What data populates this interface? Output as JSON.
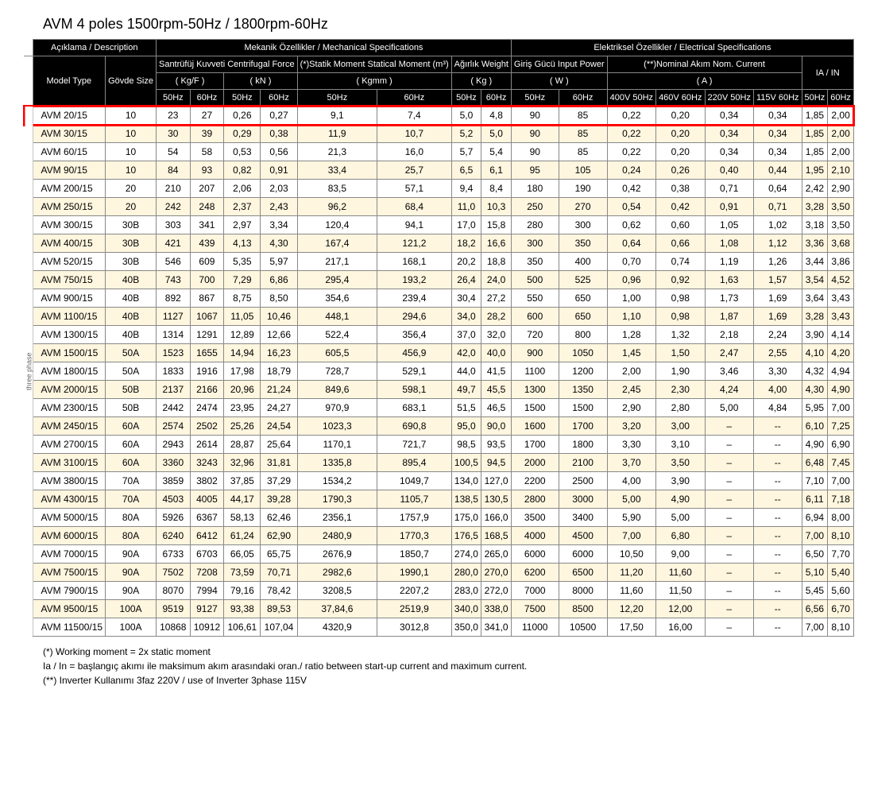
{
  "title": "AVM 4 poles 1500rpm-50Hz  / 1800rpm-60Hz",
  "sideLabel": "three phase",
  "headers": {
    "groupDesc": "Açıklama / Description",
    "groupMech": "Mekanik Özellikler / Mechanical Specifications",
    "groupElec": "Elektriksel Özellikler / Electrical Specifications",
    "modelType": "Model Type",
    "bodySize": "Gövde Size",
    "centrifugal": "Santrüfüj Kuvveti Centrifugal Force",
    "centrifugalKgf": "( Kg/F )",
    "centrifugalKn": "( kN )",
    "statical": "(*)Statik Moment Statical Moment (m³)",
    "staticalUnit": "( Kgmm )",
    "weight": "Ağırlık Weight",
    "weightUnit": "( Kg )",
    "inputPower": "Giriş Gücü Input Power",
    "inputPowerUnit": "( W )",
    "nomCurrent": "(**)Nominal Akım Nom. Current",
    "nomCurrentUnit": "( A )",
    "iain": "IA / IN",
    "h50": "50Hz",
    "h60": "60Hz",
    "v400_50": "400V 50Hz",
    "v460_60": "460V 60Hz",
    "v220_50": "220V 50Hz",
    "v115_60": "115V 60Hz"
  },
  "columns": [
    "model",
    "size",
    "cf50",
    "cf60",
    "kn50",
    "kn60",
    "sm50",
    "sm60",
    "w50",
    "w60",
    "ip50",
    "ip60",
    "nc400",
    "nc460",
    "nc220",
    "nc115",
    "ia50",
    "ia60"
  ],
  "highlightRow": 0,
  "rows": [
    [
      "AVM 20/15",
      "10",
      "23",
      "27",
      "0,26",
      "0,27",
      "9,1",
      "7,4",
      "5,0",
      "4,8",
      "90",
      "85",
      "0,22",
      "0,20",
      "0,34",
      "0,34",
      "1,85",
      "2,00"
    ],
    [
      "AVM 30/15",
      "10",
      "30",
      "39",
      "0,29",
      "0,38",
      "11,9",
      "10,7",
      "5,2",
      "5,0",
      "90",
      "85",
      "0,22",
      "0,20",
      "0,34",
      "0,34",
      "1,85",
      "2,00"
    ],
    [
      "AVM 60/15",
      "10",
      "54",
      "58",
      "0,53",
      "0,56",
      "21,3",
      "16,0",
      "5,7",
      "5,4",
      "90",
      "85",
      "0,22",
      "0,20",
      "0,34",
      "0,34",
      "1,85",
      "2,00"
    ],
    [
      "AVM 90/15",
      "10",
      "84",
      "93",
      "0,82",
      "0,91",
      "33,4",
      "25,7",
      "6,5",
      "6,1",
      "95",
      "105",
      "0,24",
      "0,26",
      "0,40",
      "0,44",
      "1,95",
      "2,10"
    ],
    [
      "AVM 200/15",
      "20",
      "210",
      "207",
      "2,06",
      "2,03",
      "83,5",
      "57,1",
      "9,4",
      "8,4",
      "180",
      "190",
      "0,42",
      "0,38",
      "0,71",
      "0,64",
      "2,42",
      "2,90"
    ],
    [
      "AVM 250/15",
      "20",
      "242",
      "248",
      "2,37",
      "2,43",
      "96,2",
      "68,4",
      "11,0",
      "10,3",
      "250",
      "270",
      "0,54",
      "0,42",
      "0,91",
      "0,71",
      "3,28",
      "3,50"
    ],
    [
      "AVM 300/15",
      "30B",
      "303",
      "341",
      "2,97",
      "3,34",
      "120,4",
      "94,1",
      "17,0",
      "15,8",
      "280",
      "300",
      "0,62",
      "0,60",
      "1,05",
      "1,02",
      "3,18",
      "3,50"
    ],
    [
      "AVM 400/15",
      "30B",
      "421",
      "439",
      "4,13",
      "4,30",
      "167,4",
      "121,2",
      "18,2",
      "16,6",
      "300",
      "350",
      "0,64",
      "0,66",
      "1,08",
      "1,12",
      "3,36",
      "3,68"
    ],
    [
      "AVM 520/15",
      "30B",
      "546",
      "609",
      "5,35",
      "5,97",
      "217,1",
      "168,1",
      "20,2",
      "18,8",
      "350",
      "400",
      "0,70",
      "0,74",
      "1,19",
      "1,26",
      "3,44",
      "3,86"
    ],
    [
      "AVM 750/15",
      "40B",
      "743",
      "700",
      "7,29",
      "6,86",
      "295,4",
      "193,2",
      "26,4",
      "24,0",
      "500",
      "525",
      "0,96",
      "0,92",
      "1,63",
      "1,57",
      "3,54",
      "4,52"
    ],
    [
      "AVM 900/15",
      "40B",
      "892",
      "867",
      "8,75",
      "8,50",
      "354,6",
      "239,4",
      "30,4",
      "27,2",
      "550",
      "650",
      "1,00",
      "0,98",
      "1,73",
      "1,69",
      "3,64",
      "3,43"
    ],
    [
      "AVM 1100/15",
      "40B",
      "1127",
      "1067",
      "11,05",
      "10,46",
      "448,1",
      "294,6",
      "34,0",
      "28,2",
      "600",
      "650",
      "1,10",
      "0,98",
      "1,87",
      "1,69",
      "3,28",
      "3,43"
    ],
    [
      "AVM 1300/15",
      "40B",
      "1314",
      "1291",
      "12,89",
      "12,66",
      "522,4",
      "356,4",
      "37,0",
      "32,0",
      "720",
      "800",
      "1,28",
      "1,32",
      "2,18",
      "2,24",
      "3,90",
      "4,14"
    ],
    [
      "AVM 1500/15",
      "50A",
      "1523",
      "1655",
      "14,94",
      "16,23",
      "605,5",
      "456,9",
      "42,0",
      "40,0",
      "900",
      "1050",
      "1,45",
      "1,50",
      "2,47",
      "2,55",
      "4,10",
      "4,20"
    ],
    [
      "AVM 1800/15",
      "50A",
      "1833",
      "1916",
      "17,98",
      "18,79",
      "728,7",
      "529,1",
      "44,0",
      "41,5",
      "1100",
      "1200",
      "2,00",
      "1,90",
      "3,46",
      "3,30",
      "4,32",
      "4,94"
    ],
    [
      "AVM 2000/15",
      "50B",
      "2137",
      "2166",
      "20,96",
      "21,24",
      "849,6",
      "598,1",
      "49,7",
      "45,5",
      "1300",
      "1350",
      "2,45",
      "2,30",
      "4,24",
      "4,00",
      "4,30",
      "4,90"
    ],
    [
      "AVM 2300/15",
      "50B",
      "2442",
      "2474",
      "23,95",
      "24,27",
      "970,9",
      "683,1",
      "51,5",
      "46,5",
      "1500",
      "1500",
      "2,90",
      "2,80",
      "5,00",
      "4,84",
      "5,95",
      "7,00"
    ],
    [
      "AVM 2450/15",
      "60A",
      "2574",
      "2502",
      "25,26",
      "24,54",
      "1023,3",
      "690,8",
      "95,0",
      "90,0",
      "1600",
      "1700",
      "3,20",
      "3,00",
      "–",
      "--",
      "6,10",
      "7,25"
    ],
    [
      "AVM 2700/15",
      "60A",
      "2943",
      "2614",
      "28,87",
      "25,64",
      "1170,1",
      "721,7",
      "98,5",
      "93,5",
      "1700",
      "1800",
      "3,30",
      "3,10",
      "–",
      "--",
      "4,90",
      "6,90"
    ],
    [
      "AVM 3100/15",
      "60A",
      "3360",
      "3243",
      "32,96",
      "31,81",
      "1335,8",
      "895,4",
      "100,5",
      "94,5",
      "2000",
      "2100",
      "3,70",
      "3,50",
      "–",
      "--",
      "6,48",
      "7,45"
    ],
    [
      "AVM 3800/15",
      "70A",
      "3859",
      "3802",
      "37,85",
      "37,29",
      "1534,2",
      "1049,7",
      "134,0",
      "127,0",
      "2200",
      "2500",
      "4,00",
      "3,90",
      "–",
      "--",
      "7,10",
      "7,00"
    ],
    [
      "AVM 4300/15",
      "70A",
      "4503",
      "4005",
      "44,17",
      "39,28",
      "1790,3",
      "1105,7",
      "138,5",
      "130,5",
      "2800",
      "3000",
      "5,00",
      "4,90",
      "–",
      "--",
      "6,11",
      "7,18"
    ],
    [
      "AVM 5000/15",
      "80A",
      "5926",
      "6367",
      "58,13",
      "62,46",
      "2356,1",
      "1757,9",
      "175,0",
      "166,0",
      "3500",
      "3400",
      "5,90",
      "5,00",
      "–",
      "--",
      "6,94",
      "8,00"
    ],
    [
      "AVM 6000/15",
      "80A",
      "6240",
      "6412",
      "61,24",
      "62,90",
      "2480,9",
      "1770,3",
      "176,5",
      "168,5",
      "4000",
      "4500",
      "7,00",
      "6,80",
      "–",
      "--",
      "7,00",
      "8,10"
    ],
    [
      "AVM 7000/15",
      "90A",
      "6733",
      "6703",
      "66,05",
      "65,75",
      "2676,9",
      "1850,7",
      "274,0",
      "265,0",
      "6000",
      "6000",
      "10,50",
      "9,00",
      "–",
      "--",
      "6,50",
      "7,70"
    ],
    [
      "AVM 7500/15",
      "90A",
      "7502",
      "7208",
      "73,59",
      "70,71",
      "2982,6",
      "1990,1",
      "280,0",
      "270,0",
      "6200",
      "6500",
      "11,20",
      "11,60",
      "–",
      "--",
      "5,10",
      "5,40"
    ],
    [
      "AVM 7900/15",
      "90A",
      "8070",
      "7994",
      "79,16",
      "78,42",
      "3208,5",
      "2207,2",
      "283,0",
      "272,0",
      "7000",
      "8000",
      "11,60",
      "11,50",
      "–",
      "--",
      "5,45",
      "5,60"
    ],
    [
      "AVM 9500/15",
      "100A",
      "9519",
      "9127",
      "93,38",
      "89,53",
      "37,84,6",
      "2519,9",
      "340,0",
      "338,0",
      "7500",
      "8500",
      "12,20",
      "12,00",
      "–",
      "--",
      "6,56",
      "6,70"
    ],
    [
      "AVM 11500/15",
      "100A",
      "10868",
      "10912",
      "106,61",
      "107,04",
      "4320,9",
      "3012,8",
      "350,0",
      "341,0",
      "11000",
      "10500",
      "17,50",
      "16,00",
      "–",
      "--",
      "7,00",
      "8,10"
    ]
  ],
  "footnotes": [
    "(*) Working moment = 2x static moment",
    "Ia / In = başlangıç akımı ile maksimum akım arasındaki oran./ ratio between start-up current and maximum current.",
    "(**) Inverter Kullanımı 3faz 220V / use of Inverter 3phase 115V"
  ],
  "styling": {
    "headerBg": "#000000",
    "headerFg": "#ffffff",
    "rowOddBg": "#ffffff",
    "rowEvenBg": "#fff6df",
    "highlightColor": "#ff0000",
    "borderColor": "#888888",
    "fontSize": 12,
    "titleFontSize": 18
  }
}
